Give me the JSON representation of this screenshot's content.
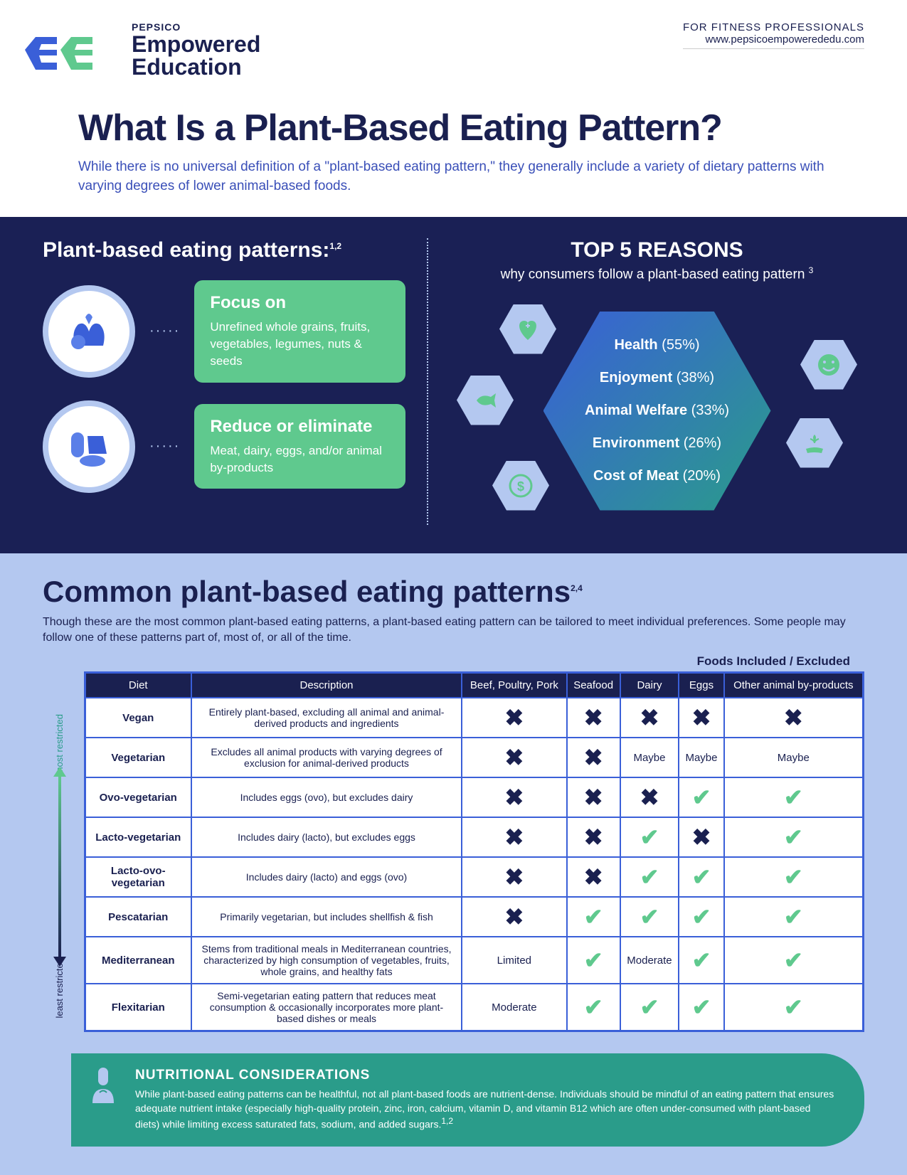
{
  "header": {
    "brand_small": "PEPSICO",
    "brand_line1": "Empowered",
    "brand_line2": "Education",
    "audience": "FOR FITNESS PROFESSIONALS",
    "url": "www.pepsicoempowerededu.com"
  },
  "title": "What Is a Plant-Based Eating Pattern?",
  "subtitle": "While there is no universal definition of a \"plant-based eating pattern,\" they generally include a variety of dietary patterns with varying degrees of lower animal-based foods.",
  "patterns_heading": "Plant-based eating patterns:",
  "patterns_ref": "1,2",
  "focus": {
    "title": "Focus on",
    "text": "Unrefined whole grains, fruits, vegetables, legumes, nuts & seeds"
  },
  "reduce": {
    "title": "Reduce or eliminate",
    "text": "Meat, dairy, eggs, and/or animal by-products"
  },
  "top5": {
    "title": "TOP 5 REASONS",
    "sub": "why consumers follow a plant-based eating pattern",
    "ref": "3",
    "reasons": [
      {
        "label": "Health",
        "pct": "(55%)"
      },
      {
        "label": "Enjoyment",
        "pct": "(38%)"
      },
      {
        "label": "Animal Welfare",
        "pct": "(33%)"
      },
      {
        "label": "Environment",
        "pct": "(26%)"
      },
      {
        "label": "Cost of Meat",
        "pct": "(20%)"
      }
    ]
  },
  "common": {
    "title": "Common plant-based eating patterns",
    "ref": "2,4",
    "desc": "Though these are the most common plant-based eating patterns, a plant-based eating pattern can be tailored to meet individual preferences. Some people may follow one of these patterns part of, most of, or all of the time.",
    "foods_header": "Foods Included / Excluded",
    "arrow_top": "most restricted",
    "arrow_bottom": "least restricted",
    "columns": [
      "Diet",
      "Description",
      "Beef, Poultry, Pork",
      "Seafood",
      "Dairy",
      "Eggs",
      "Other animal by-products"
    ],
    "rows": [
      {
        "name": "Vegan",
        "desc": "Entirely plant-based, excluding all animal and animal-derived products and ingredients",
        "marks": [
          "x",
          "x",
          "x",
          "x",
          "x"
        ]
      },
      {
        "name": "Vegetarian",
        "desc": "Excludes all animal products with varying degrees of exclusion for animal-derived products",
        "marks": [
          "x",
          "x",
          "Maybe",
          "Maybe",
          "Maybe"
        ]
      },
      {
        "name": "Ovo-vegetarian",
        "desc": "Includes eggs (ovo), but excludes dairy",
        "marks": [
          "x",
          "x",
          "x",
          "check",
          "check"
        ]
      },
      {
        "name": "Lacto-vegetarian",
        "desc": "Includes dairy (lacto), but excludes eggs",
        "marks": [
          "x",
          "x",
          "check",
          "x",
          "check"
        ]
      },
      {
        "name": "Lacto-ovo-vegetarian",
        "desc": "Includes dairy (lacto) and eggs (ovo)",
        "marks": [
          "x",
          "x",
          "check",
          "check",
          "check"
        ]
      },
      {
        "name": "Pescatarian",
        "desc": "Primarily vegetarian, but includes shellfish & fish",
        "marks": [
          "x",
          "check",
          "check",
          "check",
          "check"
        ]
      },
      {
        "name": "Mediterranean",
        "desc": "Stems from traditional meals in Mediterranean countries, characterized by high consumption of vegetables, fruits, whole grains, and healthy fats",
        "marks": [
          "Limited",
          "check",
          "Moderate",
          "check",
          "check"
        ]
      },
      {
        "name": "Flexitarian",
        "desc": "Semi-vegetarian eating pattern that reduces meat consumption & occasionally incorporates more plant-based dishes or meals",
        "marks": [
          "Moderate",
          "check",
          "check",
          "check",
          "check"
        ]
      }
    ]
  },
  "callout": {
    "title": "NUTRITIONAL CONSIDERATIONS",
    "text": "While plant-based eating patterns can be healthful, not all plant-based foods are nutrient-dense. Individuals should be mindful of an eating pattern that ensures adequate nutrient intake (especially high-quality protein, zinc, iron, calcium, vitamin D, and vitamin B12 which are often under-consumed with plant-based diets) while limiting excess saturated fats, sodium, and added sugars.",
    "ref": "1,2"
  },
  "colors": {
    "dark_navy": "#1a2050",
    "bg_navy": "#1a2055",
    "blue": "#3a5fd8",
    "light_blue": "#b4c8f0",
    "green": "#5fc98e",
    "teal": "#2a9c8a"
  }
}
